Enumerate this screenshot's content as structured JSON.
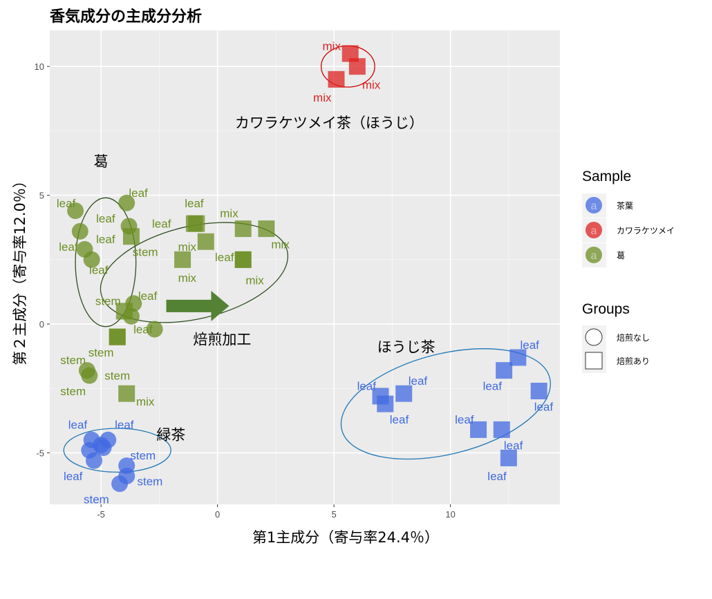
{
  "chart_data": {
    "type": "scatter",
    "title": "香気成分の主成分分析",
    "xlabel": "第1主成分（寄与率24.4％）",
    "ylabel": "第２主成分（寄与率12.0％）",
    "xlim": [
      -7.2,
      14.7
    ],
    "ylim": [
      -7.0,
      11.4
    ],
    "xticks": [
      -5,
      0,
      5,
      10
    ],
    "yticks": [
      -5,
      0,
      5,
      10
    ],
    "grid": true,
    "legend_position": "right",
    "colors": {
      "茶葉": "#4169e1",
      "カワラケツメイ": "#dd2222",
      "葛": "#6b8e23"
    },
    "legends": [
      {
        "title": "Sample",
        "items": [
          {
            "label": "茶葉",
            "color": "#4169e1",
            "key": "a"
          },
          {
            "label": "カワラケツメイ",
            "color": "#dd2222",
            "key": "a"
          },
          {
            "label": "葛",
            "color": "#6b8e23",
            "key": "a"
          }
        ]
      },
      {
        "title": "Groups",
        "items": [
          {
            "label": "焙煎なし",
            "shape": "circle"
          },
          {
            "label": "焙煎あり",
            "shape": "square"
          }
        ]
      }
    ],
    "annotations": [
      {
        "text": "カワラケツメイ茶（ほうじ）",
        "x": 4.8,
        "y": 7.8
      },
      {
        "text": "葛",
        "x": -5.0,
        "y": 6.3
      },
      {
        "text": "焙煎加工",
        "x": 0.2,
        "y": -0.6
      },
      {
        "text": "ほうじ茶",
        "x": 8.1,
        "y": -0.9
      },
      {
        "text": "緑茶",
        "x": -2.0,
        "y": -4.3
      }
    ],
    "arrow": {
      "from": [
        -2.2,
        0.7
      ],
      "to": [
        0.5,
        0.7
      ],
      "color": "#548235"
    },
    "ellipses": [
      {
        "cx": 5.6,
        "cy": 10.0,
        "rx": 2.3,
        "ry": 1.6,
        "angle": 0,
        "color": "#cc0000"
      },
      {
        "cx": -4.8,
        "cy": 2.4,
        "rx": 2.6,
        "ry": 5.0,
        "angle": 0,
        "color": "#2f4f1f"
      },
      {
        "cx": -1.0,
        "cy": 2.0,
        "rx": 8.2,
        "ry": 3.6,
        "angle": -13,
        "color": "#2f4f1f"
      },
      {
        "cx": 9.8,
        "cy": -3.1,
        "rx": 9.2,
        "ry": 3.9,
        "angle": -14,
        "color": "#1f77b4"
      },
      {
        "cx": -4.3,
        "cy": -4.9,
        "rx": 4.6,
        "ry": 1.7,
        "angle": 0,
        "color": "#1f77b4"
      }
    ],
    "series": [
      {
        "sample": "茶葉",
        "group": "焙煎なし",
        "points": [
          {
            "x": -5.4,
            "y": -4.5,
            "label": "leaf",
            "lx": -6.0,
            "ly": -3.9
          },
          {
            "x": -5.0,
            "y": -4.7,
            "label": "",
            "lx": 0,
            "ly": 0
          },
          {
            "x": -4.7,
            "y": -4.5,
            "label": "leaf",
            "lx": -4.0,
            "ly": -3.9
          },
          {
            "x": -5.5,
            "y": -4.9,
            "label": "",
            "lx": 0,
            "ly": 0
          },
          {
            "x": -5.3,
            "y": -5.3,
            "label": "leaf",
            "lx": -6.2,
            "ly": -5.9
          },
          {
            "x": -4.9,
            "y": -4.8,
            "label": "",
            "lx": 0,
            "ly": 0
          },
          {
            "x": -3.9,
            "y": -5.5,
            "label": "stem",
            "lx": -3.2,
            "ly": -5.1
          },
          {
            "x": -3.9,
            "y": -5.9,
            "label": "stem",
            "lx": -2.9,
            "ly": -6.1
          },
          {
            "x": -4.2,
            "y": -6.2,
            "label": "stem",
            "lx": -5.2,
            "ly": -6.8
          }
        ]
      },
      {
        "sample": "カワラケツメイ",
        "group": "焙煎あり",
        "points": [
          {
            "x": 5.7,
            "y": 10.5,
            "label": "mix",
            "lx": 4.9,
            "ly": 10.8
          },
          {
            "x": 6.0,
            "y": 10.0,
            "label": "mix",
            "lx": 6.6,
            "ly": 9.3
          },
          {
            "x": 5.1,
            "y": 9.5,
            "label": "mix",
            "lx": 4.5,
            "ly": 8.8
          }
        ]
      },
      {
        "sample": "葛",
        "group": "焙煎なし",
        "points": [
          {
            "x": -6.1,
            "y": 4.4,
            "label": "leaf",
            "lx": -6.5,
            "ly": 4.7
          },
          {
            "x": -5.9,
            "y": 3.6,
            "label": "leaf",
            "lx": -4.8,
            "ly": 4.1
          },
          {
            "x": -5.7,
            "y": 2.9,
            "label": "leaf",
            "lx": -6.4,
            "ly": 3.0
          },
          {
            "x": -3.9,
            "y": 4.7,
            "label": "leaf",
            "lx": -3.4,
            "ly": 5.1
          },
          {
            "x": -3.8,
            "y": 3.8,
            "label": "leaf",
            "lx": -4.8,
            "ly": 3.3
          },
          {
            "x": -5.4,
            "y": 2.5,
            "label": "leaf",
            "lx": -5.1,
            "ly": 2.1
          },
          {
            "x": -3.6,
            "y": 0.8,
            "label": "leaf",
            "lx": -3.0,
            "ly": 1.1
          },
          {
            "x": -3.7,
            "y": 0.3,
            "label": "stem",
            "lx": -4.7,
            "ly": 0.9
          },
          {
            "x": -2.7,
            "y": -0.2,
            "label": "leaf",
            "lx": -3.2,
            "ly": -0.2
          },
          {
            "x": -5.6,
            "y": -1.8,
            "label": "stem",
            "lx": -6.2,
            "ly": -1.4
          },
          {
            "x": -5.5,
            "y": -2.0,
            "label": "stem",
            "lx": -6.2,
            "ly": -2.6
          }
        ]
      },
      {
        "sample": "葛",
        "group": "焙煎あり",
        "points": [
          {
            "x": -3.7,
            "y": 3.4,
            "label": "stem",
            "lx": -3.1,
            "ly": 2.8
          },
          {
            "x": -1.0,
            "y": 3.9,
            "label": "leaf",
            "lx": -1.0,
            "ly": 4.7
          },
          {
            "x": -0.9,
            "y": 3.9,
            "label": "leaf",
            "lx": -2.4,
            "ly": 3.9
          },
          {
            "x": -0.5,
            "y": 3.2,
            "label": "mix",
            "lx": -1.3,
            "ly": 3.0
          },
          {
            "x": 1.1,
            "y": 3.7,
            "label": "mix",
            "lx": 0.5,
            "ly": 4.3
          },
          {
            "x": 2.1,
            "y": 3.7,
            "label": "mix",
            "lx": 2.7,
            "ly": 3.1
          },
          {
            "x": -1.5,
            "y": 2.5,
            "label": "mix",
            "lx": -1.3,
            "ly": 1.8
          },
          {
            "x": 1.1,
            "y": 2.5,
            "label": "leaf",
            "lx": 0.3,
            "ly": 2.6
          },
          {
            "x": 1.1,
            "y": 2.5,
            "label": "mix",
            "lx": 1.6,
            "ly": 1.7
          },
          {
            "x": -4.0,
            "y": 0.5,
            "label": "",
            "lx": 0,
            "ly": 0
          },
          {
            "x": -4.3,
            "y": -0.5,
            "label": "stem",
            "lx": -5.0,
            "ly": -1.1
          },
          {
            "x": -4.3,
            "y": -0.5,
            "label": "stem",
            "lx": -4.3,
            "ly": -2.0
          },
          {
            "x": -3.9,
            "y": -2.7,
            "label": "mix",
            "lx": -3.1,
            "ly": -3.0
          }
        ]
      },
      {
        "sample": "茶葉",
        "group": "焙煎あり",
        "points": [
          {
            "x": 7.0,
            "y": -2.8,
            "label": "leaf",
            "lx": 6.4,
            "ly": -2.4
          },
          {
            "x": 7.2,
            "y": -3.1,
            "label": "leaf",
            "lx": 7.8,
            "ly": -3.7
          },
          {
            "x": 8.0,
            "y": -2.7,
            "label": "leaf",
            "lx": 8.6,
            "ly": -2.2
          },
          {
            "x": 11.2,
            "y": -4.1,
            "label": "leaf",
            "lx": 10.6,
            "ly": -3.7
          },
          {
            "x": 12.2,
            "y": -4.1,
            "label": "leaf",
            "lx": 12.7,
            "ly": -4.7
          },
          {
            "x": 12.5,
            "y": -5.2,
            "label": "leaf",
            "lx": 12.0,
            "ly": -5.9
          },
          {
            "x": 12.3,
            "y": -1.8,
            "label": "leaf",
            "lx": 11.8,
            "ly": -2.4
          },
          {
            "x": 12.9,
            "y": -1.3,
            "label": "leaf",
            "lx": 13.4,
            "ly": -0.8
          },
          {
            "x": 13.8,
            "y": -2.6,
            "label": "leaf",
            "lx": 14.0,
            "ly": -3.2
          }
        ]
      }
    ]
  }
}
